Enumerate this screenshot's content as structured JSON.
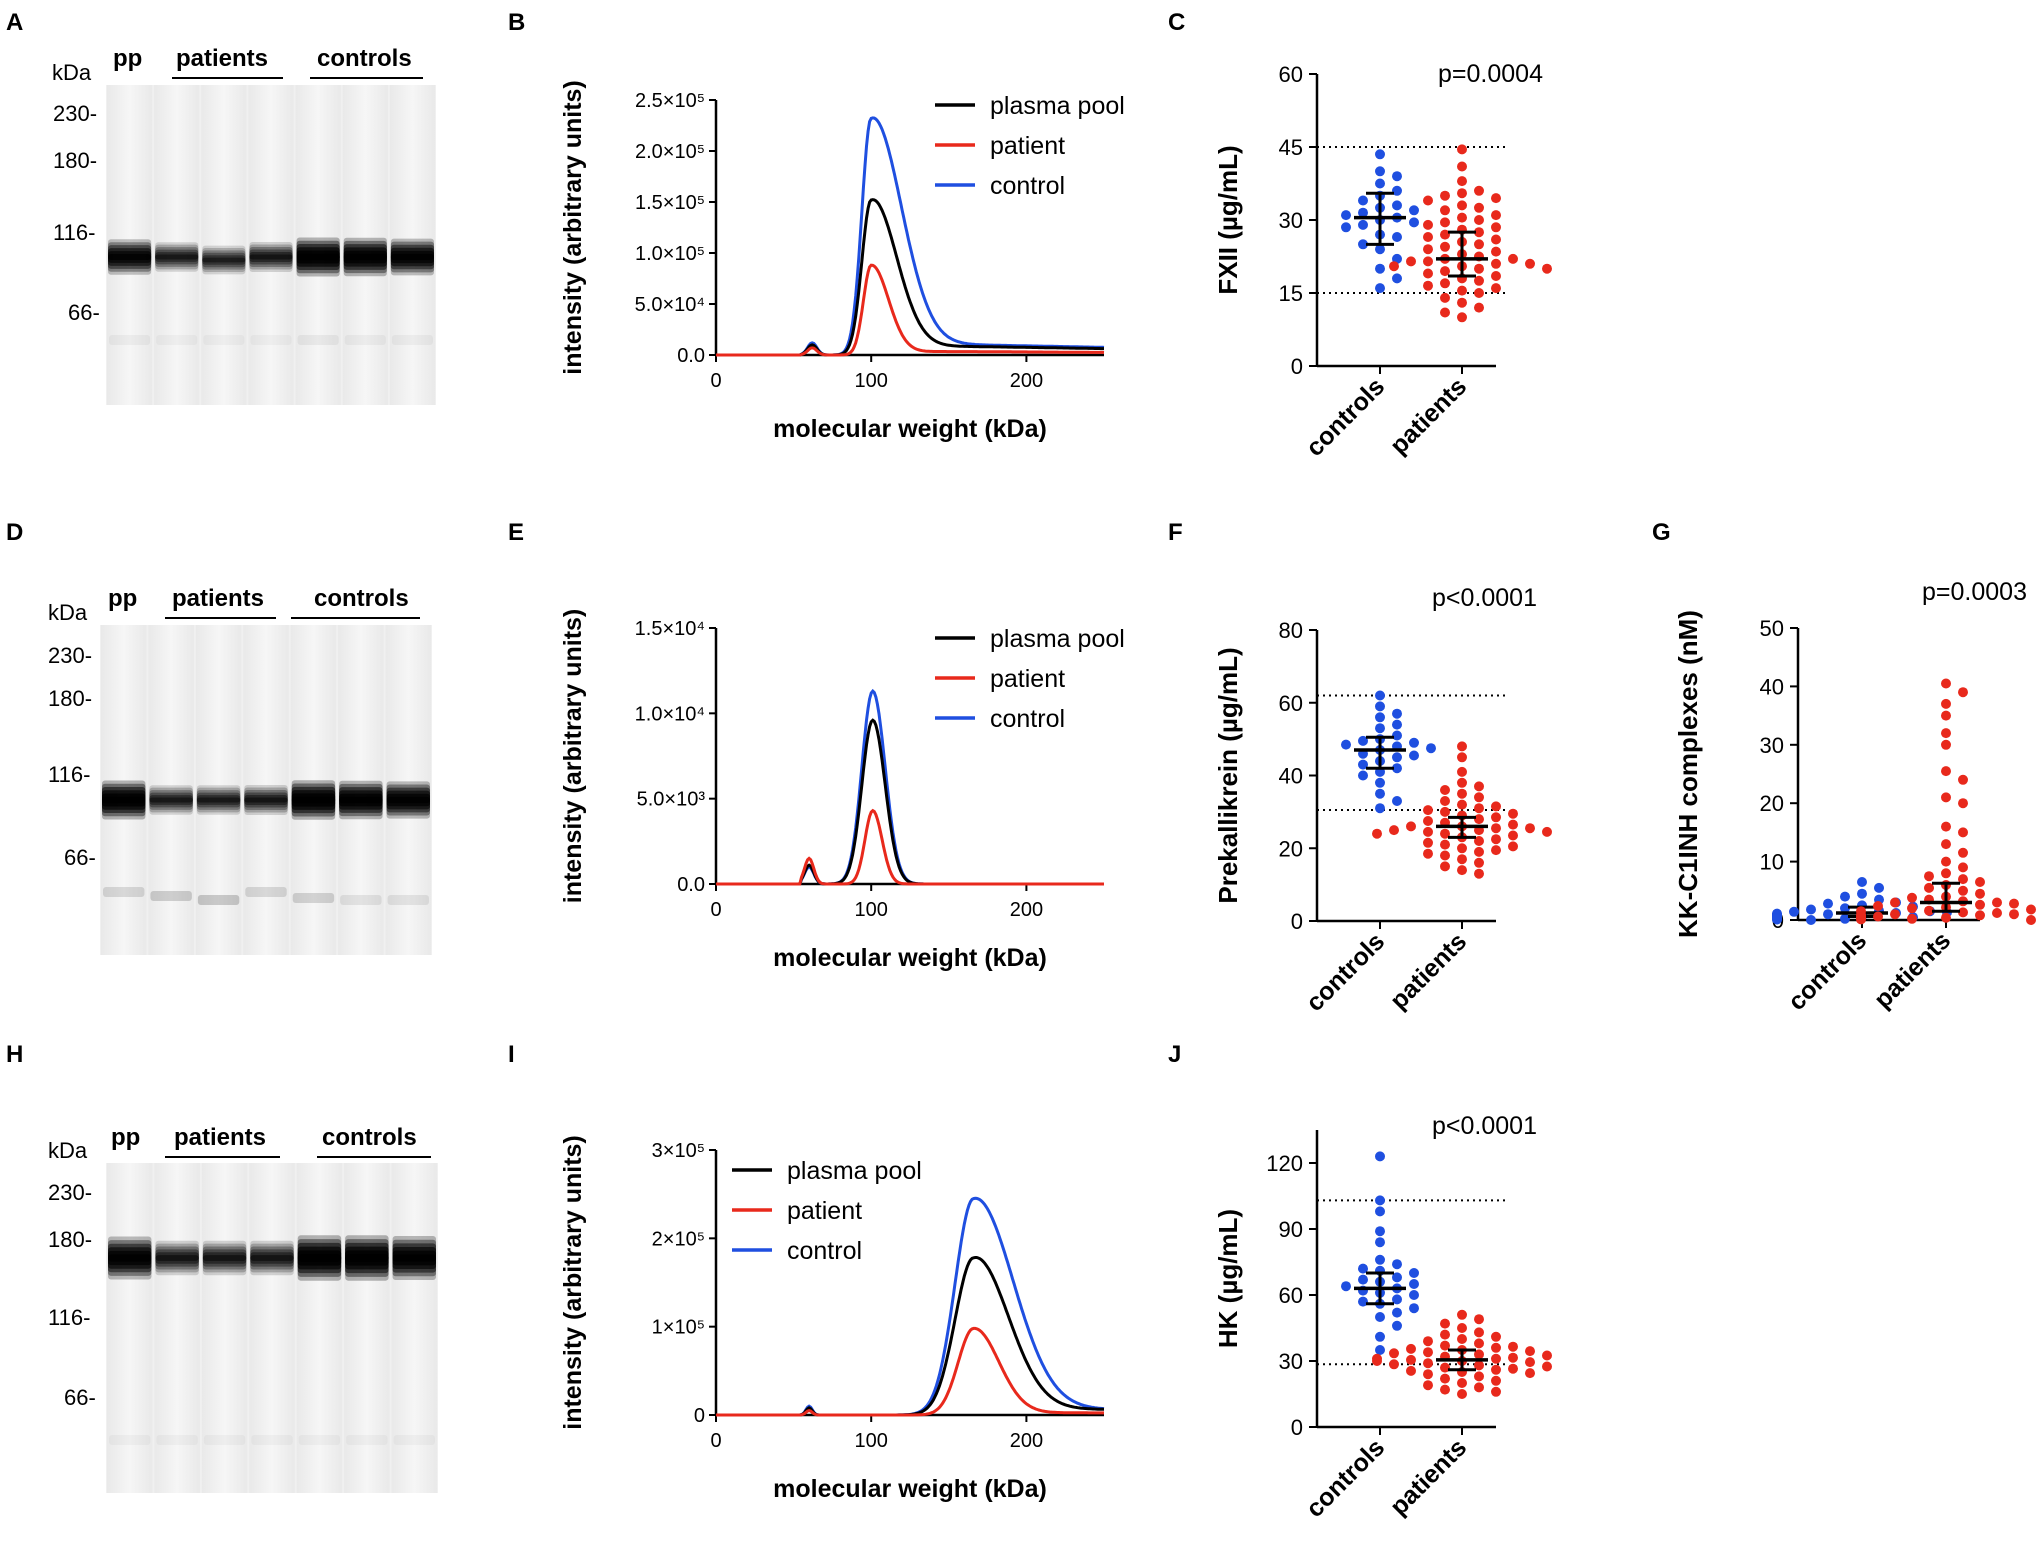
{
  "figure": {
    "panels": {
      "A": {
        "label": "A",
        "kda": "kDa",
        "pp": "pp",
        "patients": "patients",
        "controls": "controls",
        "markers": [
          "230-",
          "180-",
          "116-",
          "66-"
        ]
      },
      "D": {
        "label": "D",
        "kda": "kDa",
        "pp": "pp",
        "patients": "patients",
        "controls": "controls",
        "markers": [
          "230-",
          "180-",
          "116-",
          "66-"
        ]
      },
      "H": {
        "label": "H",
        "kda": "kDa",
        "pp": "pp",
        "patients": "patients",
        "controls": "controls",
        "markers": [
          "230-",
          "180-",
          "116-",
          "66-"
        ]
      },
      "B": {
        "label": "B"
      },
      "E": {
        "label": "E"
      },
      "I": {
        "label": "I"
      },
      "C": {
        "label": "C"
      },
      "F": {
        "label": "F"
      },
      "G": {
        "label": "G"
      },
      "J": {
        "label": "J"
      }
    },
    "colors": {
      "plasma_pool": "#000000",
      "patient": "#e8291c",
      "control": "#1f4fe0",
      "controls_dots": "#1f4fe0",
      "patients_dots": "#e8291c"
    }
  },
  "chart_data": [
    {
      "id": "B",
      "type": "line",
      "title": "",
      "xlabel": "molecular weight (kDa)",
      "ylabel": "intensity (arbitrary units)",
      "xlim": [
        0,
        250
      ],
      "ylim": [
        0,
        250000
      ],
      "xticks": [
        "0",
        "100",
        "200"
      ],
      "yticks": [
        "0.0",
        "5.0×10⁴",
        "1.0×10⁵",
        "1.5×10⁵",
        "2.0×10⁵",
        "2.5×10⁵"
      ],
      "legend": [
        "plasma pool",
        "patient",
        "control"
      ],
      "series": [
        {
          "name": "plasma pool",
          "baseline": 0,
          "bump": [
            62,
            10000,
            3
          ],
          "peak": [
            100,
            152000,
            6,
            16
          ],
          "tail": 10000
        },
        {
          "name": "patient",
          "baseline": 0,
          "bump": [
            62,
            7000,
            3
          ],
          "peak": [
            100,
            88000,
            5,
            11
          ],
          "tail": 4000
        },
        {
          "name": "control",
          "baseline": 0,
          "bump": [
            62,
            12000,
            3
          ],
          "peak": [
            100,
            232000,
            6,
            19
          ],
          "tail": 12000
        }
      ]
    },
    {
      "id": "E",
      "type": "line",
      "title": "",
      "xlabel": "molecular weight (kDa)",
      "ylabel": "intensity (arbitrary units)",
      "xlim": [
        0,
        250
      ],
      "ylim": [
        0,
        15000
      ],
      "xticks": [
        "0",
        "100",
        "200"
      ],
      "yticks": [
        "0.0",
        "5.0×10³",
        "1.0×10⁴",
        "1.5×10⁴"
      ],
      "legend": [
        "plasma pool",
        "patient",
        "control"
      ],
      "series": [
        {
          "name": "plasma pool",
          "baseline": 0,
          "bump": [
            60,
            1100,
            3
          ],
          "peak": [
            101,
            9600,
            7,
            8
          ],
          "tail": 0
        },
        {
          "name": "patient",
          "baseline": 0,
          "bump": [
            60,
            1500,
            3
          ],
          "peak": [
            101,
            4300,
            5,
            6
          ],
          "tail": 0
        },
        {
          "name": "control",
          "baseline": 0,
          "bump": [
            60,
            1000,
            3
          ],
          "peak": [
            101,
            11300,
            7,
            8
          ],
          "tail": 0
        }
      ]
    },
    {
      "id": "I",
      "type": "line",
      "title": "",
      "xlabel": "molecular weight (kDa)",
      "ylabel": "intensity (arbitrary units)",
      "xlim": [
        0,
        250
      ],
      "ylim": [
        0,
        300000
      ],
      "xticks": [
        "0",
        "100",
        "200"
      ],
      "yticks": [
        "0",
        "1×10⁵",
        "2×10⁵",
        "3×10⁵"
      ],
      "legend": [
        "plasma pool",
        "patient",
        "control"
      ],
      "series": [
        {
          "name": "plasma pool",
          "baseline": 0,
          "bump": [
            60,
            8000,
            2
          ],
          "peak": [
            166,
            178000,
            12,
            22
          ],
          "tail": 8000
        },
        {
          "name": "patient",
          "baseline": 0,
          "bump": [
            60,
            5000,
            2
          ],
          "peak": [
            166,
            98000,
            10,
            16
          ],
          "tail": 3000
        },
        {
          "name": "control",
          "baseline": 0,
          "bump": [
            60,
            10000,
            2
          ],
          "peak": [
            166,
            245000,
            12,
            25
          ],
          "tail": 8000
        }
      ]
    },
    {
      "id": "C",
      "type": "scatter",
      "ylabel": "FXII (µg/mL)",
      "ylim": [
        0,
        60
      ],
      "yticks": [
        "0",
        "15",
        "30",
        "45",
        "60"
      ],
      "categories": [
        "controls",
        "patients"
      ],
      "pvalue": "p=0.0004",
      "reference_lines": [
        15,
        45
      ],
      "groups": [
        {
          "name": "controls",
          "median": 30.5,
          "q1": 25,
          "q3": 35.5,
          "values": [
            43.5,
            40,
            39,
            37.5,
            36,
            35,
            34,
            33,
            32.5,
            32,
            31.5,
            31,
            30.5,
            30,
            29.5,
            29,
            28.5,
            27,
            26.5,
            25,
            24,
            22,
            20,
            18,
            16
          ]
        },
        {
          "name": "patients",
          "median": 22,
          "q1": 18.5,
          "q3": 27.5,
          "values": [
            44.5,
            41,
            38,
            36,
            35.5,
            35,
            34.5,
            34,
            33,
            32.5,
            32,
            31,
            30.5,
            30,
            29.5,
            29,
            28.5,
            28,
            27.5,
            27,
            26.5,
            26,
            25.5,
            25,
            24.5,
            24,
            23.5,
            23,
            22.5,
            22,
            22,
            21.5,
            21.5,
            21,
            21,
            20.5,
            20.5,
            20,
            20,
            19.5,
            19,
            18.5,
            18,
            17.5,
            17,
            16.5,
            16,
            15.5,
            15,
            14,
            13,
            12,
            11,
            10
          ]
        }
      ]
    },
    {
      "id": "F",
      "type": "scatter",
      "ylabel": "Prekallikrein (µg/mL)",
      "ylim": [
        0,
        80
      ],
      "yticks": [
        "0",
        "20",
        "40",
        "60",
        "80"
      ],
      "categories": [
        "controls",
        "patients"
      ],
      "pvalue": "p<0.0001",
      "reference_lines": [
        30.5,
        62
      ],
      "groups": [
        {
          "name": "controls",
          "median": 47,
          "q1": 42,
          "q3": 50.5,
          "values": [
            62,
            59,
            57,
            56,
            54,
            53,
            51,
            50,
            49.5,
            49,
            48.5,
            48,
            47.5,
            47,
            46,
            45.5,
            45,
            44,
            43,
            42,
            41,
            40,
            38,
            35,
            33,
            31
          ]
        },
        {
          "name": "patients",
          "median": 26,
          "q1": 23,
          "q3": 28.5,
          "values": [
            48,
            45,
            41,
            38,
            37,
            36,
            35,
            34,
            33,
            32,
            31.5,
            31,
            30.5,
            30,
            29.5,
            29,
            28.5,
            28,
            27.5,
            27,
            26.5,
            26,
            26,
            25.5,
            25.5,
            25,
            25,
            24.5,
            24.5,
            24,
            24,
            23.5,
            23,
            22.5,
            22,
            21.5,
            21,
            20.5,
            20,
            19.5,
            19,
            18.5,
            18,
            17,
            16,
            15,
            14,
            13
          ]
        }
      ]
    },
    {
      "id": "G",
      "type": "scatter",
      "ylabel": "KK-C1INH complexes (nM)",
      "ylim": [
        0,
        50
      ],
      "yticks": [
        "0",
        "10",
        "20",
        "30",
        "40",
        "50"
      ],
      "categories": [
        "controls",
        "patients"
      ],
      "pvalue": "p=0.0003",
      "reference_lines": [],
      "groups": [
        {
          "name": "controls",
          "median": 1.2,
          "q1": 0.6,
          "q3": 2.2,
          "values": [
            6.5,
            5.5,
            4.5,
            4,
            3.5,
            3,
            2.8,
            2.5,
            2.3,
            2,
            1.8,
            1.6,
            1.5,
            1.4,
            1.3,
            1.2,
            1.1,
            1,
            1,
            0.9,
            0.8,
            0.8,
            0.7,
            0.6,
            0.5,
            0.5,
            0.4,
            0.3,
            0.3,
            0.2,
            0.2,
            0.1,
            0.1,
            0
          ]
        },
        {
          "name": "patients",
          "median": 3,
          "q1": 1.5,
          "q3": 6.3,
          "values": [
            40.5,
            39,
            37,
            35,
            32,
            30,
            25.5,
            24,
            21,
            20,
            16,
            15,
            13,
            11.5,
            10,
            9,
            8,
            7.5,
            7,
            6.5,
            6,
            5.5,
            5,
            4.5,
            4,
            3.8,
            3.5,
            3.2,
            3,
            3,
            2.8,
            2.6,
            2.4,
            2.2,
            2,
            1.8,
            1.6,
            1.5,
            1.3,
            1.2,
            1,
            1,
            0.9,
            0.8,
            0.7,
            0.6,
            0.5,
            0.4,
            0.3,
            0.2,
            0.1,
            0
          ]
        }
      ]
    },
    {
      "id": "J",
      "type": "scatter",
      "ylabel": "HK (µg/mL)",
      "ylim": [
        0,
        135
      ],
      "yticks": [
        "0",
        "30",
        "60",
        "90",
        "120"
      ],
      "categories": [
        "controls",
        "patients"
      ],
      "pvalue": "p<0.0001",
      "reference_lines": [
        28.5,
        103
      ],
      "groups": [
        {
          "name": "controls",
          "median": 63,
          "q1": 56,
          "q3": 70,
          "values": [
            123,
            103,
            98,
            89,
            84,
            76,
            74,
            72,
            71,
            70,
            68,
            67,
            66,
            65,
            64,
            63,
            62,
            61,
            60,
            58,
            57,
            56,
            54,
            52,
            50,
            46,
            41,
            35
          ]
        },
        {
          "name": "patients",
          "median": 30.5,
          "q1": 26,
          "q3": 35,
          "values": [
            51,
            49,
            47,
            45,
            43,
            42,
            41,
            40,
            39,
            38,
            37,
            36.5,
            36,
            35.5,
            35,
            34.5,
            34,
            33.5,
            33,
            32.5,
            32,
            31.5,
            31,
            31,
            30.5,
            30,
            30,
            29.5,
            29,
            28.5,
            28,
            27.5,
            27,
            26.5,
            26,
            25.5,
            25,
            24.5,
            24,
            23,
            22,
            21,
            20,
            19,
            18,
            17,
            16,
            15
          ]
        }
      ]
    }
  ]
}
